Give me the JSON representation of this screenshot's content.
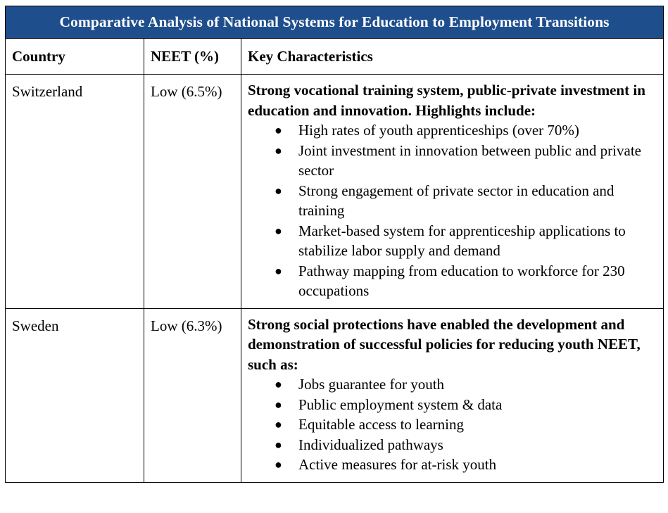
{
  "table": {
    "title": "Comparative Analysis of National Systems for Education to Employment Transitions",
    "header_color": "#1f4e8c",
    "columns": [
      "Country",
      "NEET (%)",
      "Key Characteristics"
    ],
    "rows": [
      {
        "country": "Switzerland",
        "neet": "Low (6.5%)",
        "lead": "Strong vocational training system, public-private investment in education and innovation. Highlights include:",
        "bullets": [
          "High rates of youth apprenticeships (over 70%)",
          "Joint investment in innovation between public and private sector",
          "Strong engagement of private sector in education and training",
          "Market-based system for apprenticeship applications to stabilize labor supply and demand",
          "Pathway mapping from education to workforce for 230 occupations"
        ]
      },
      {
        "country": "Sweden",
        "neet": "Low (6.3%)",
        "lead": "Strong social protections have enabled the development and demonstration of successful policies for reducing youth NEET, such as:",
        "bullets": [
          "Jobs guarantee for youth",
          "Public employment system & data",
          "Equitable access to learning",
          "Individualized pathways",
          "Active measures for at-risk youth"
        ]
      }
    ],
    "bullet_glyph": "●"
  }
}
